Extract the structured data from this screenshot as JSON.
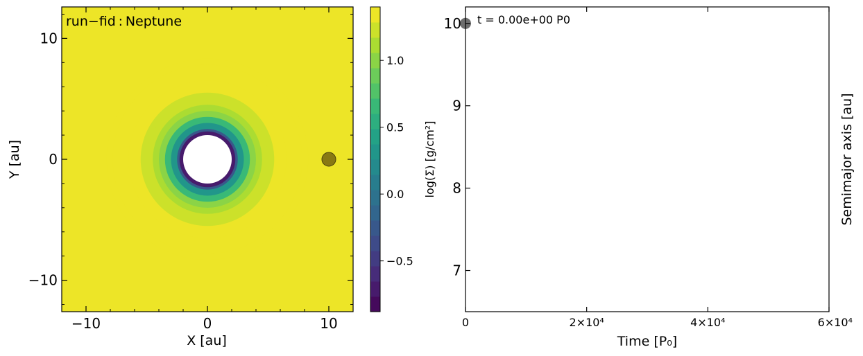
{
  "chart_data": [
    {
      "type": "heatmap",
      "title": "run−fid : Neptune",
      "xlabel": "X [au]",
      "ylabel": "Y [au]",
      "xlim": [
        -12,
        12
      ],
      "ylim": [
        -12.6,
        12.6
      ],
      "xticks": [
        "−10",
        "0",
        "10"
      ],
      "xtick_values": [
        -10,
        0,
        10
      ],
      "yticks": [
        "−10",
        "0",
        "10"
      ],
      "ytick_values": [
        -10,
        0,
        10
      ],
      "colormap": "viridis",
      "inner_hole_radius_au": 2.0,
      "surface_density_profile": {
        "r_au": [
          2.0,
          2.3,
          2.5,
          3.0,
          3.5,
          4.0,
          4.5,
          5.0,
          5.5,
          6.5,
          7.8,
          8.3
        ],
        "log_sigma": [
          -0.85,
          -0.7,
          -0.3,
          0.35,
          0.7,
          0.95,
          1.1,
          1.18,
          1.25,
          1.3,
          1.35,
          1.4
        ]
      },
      "outer_log_sigma": 1.4,
      "planet": {
        "x": 10,
        "y": 0,
        "color": "#7c6d12"
      },
      "colorbar": {
        "label": "log(Σ) [g/cm²]",
        "min": -0.88,
        "max": 1.4,
        "ticks": [
          "−0.5",
          "0.0",
          "0.5",
          "1.0"
        ],
        "tick_values": [
          -0.5,
          0.0,
          0.5,
          1.0
        ],
        "levels": 20
      }
    },
    {
      "type": "scatter",
      "xlabel": "Time [P₀]",
      "ylabel": "Semimajor axis [au]",
      "xlim": [
        0,
        60000
      ],
      "ylim": [
        6.5,
        10.2
      ],
      "xticks": [
        "0",
        "2×10⁴",
        "4×10⁴",
        "6×10⁴"
      ],
      "xtick_values": [
        0,
        20000,
        40000,
        60000
      ],
      "yticks": [
        "7",
        "8",
        "9",
        "10"
      ],
      "ytick_values": [
        7,
        8,
        9,
        10
      ],
      "annotation": "t = 0.00e+00 P0",
      "series": [
        {
          "x": [
            0
          ],
          "values": [
            10
          ],
          "color": "#555555"
        }
      ]
    }
  ]
}
